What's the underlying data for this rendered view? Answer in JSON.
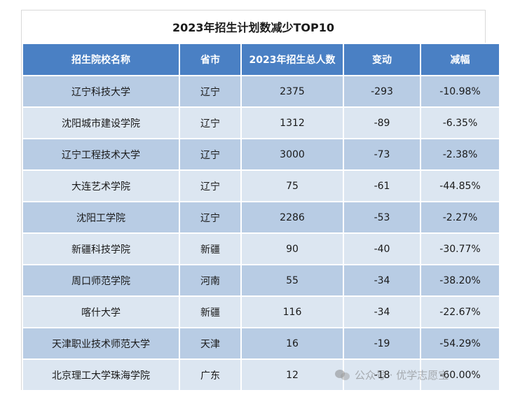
{
  "title": "2023年招生计划数减少TOP10",
  "columns": [
    "招生院校名称",
    "省市",
    "2023年招生总人数",
    "变动",
    "减幅"
  ],
  "rows": [
    {
      "school": "辽宁科技大学",
      "province": "辽宁",
      "total": "2375",
      "change": "-293",
      "decline": "-10.98%"
    },
    {
      "school": "沈阳城市建设学院",
      "province": "辽宁",
      "total": "1312",
      "change": "-89",
      "decline": "-6.35%"
    },
    {
      "school": "辽宁工程技术大学",
      "province": "辽宁",
      "total": "3000",
      "change": "-73",
      "decline": "-2.38%"
    },
    {
      "school": "大连艺术学院",
      "province": "辽宁",
      "total": "75",
      "change": "-61",
      "decline": "-44.85%"
    },
    {
      "school": "沈阳工学院",
      "province": "辽宁",
      "total": "2286",
      "change": "-53",
      "decline": "-2.27%"
    },
    {
      "school": "新疆科技学院",
      "province": "新疆",
      "total": "90",
      "change": "-40",
      "decline": "-30.77%"
    },
    {
      "school": "周口师范学院",
      "province": "河南",
      "total": "55",
      "change": "-34",
      "decline": "-38.20%"
    },
    {
      "school": "喀什大学",
      "province": "新疆",
      "total": "116",
      "change": "-34",
      "decline": "-22.67%"
    },
    {
      "school": "天津职业技术师范大学",
      "province": "天津",
      "total": "16",
      "change": "-19",
      "decline": "-54.29%"
    },
    {
      "school": "北京理工大学珠海学院",
      "province": "广东",
      "total": "12",
      "change": "-18",
      "decline": "-60.00%"
    }
  ],
  "watermark": "公众号 · 优学志愿宝",
  "colors": {
    "header": "#4a80c4",
    "row_odd": "#b8cce4",
    "row_even": "#dce6f1"
  }
}
